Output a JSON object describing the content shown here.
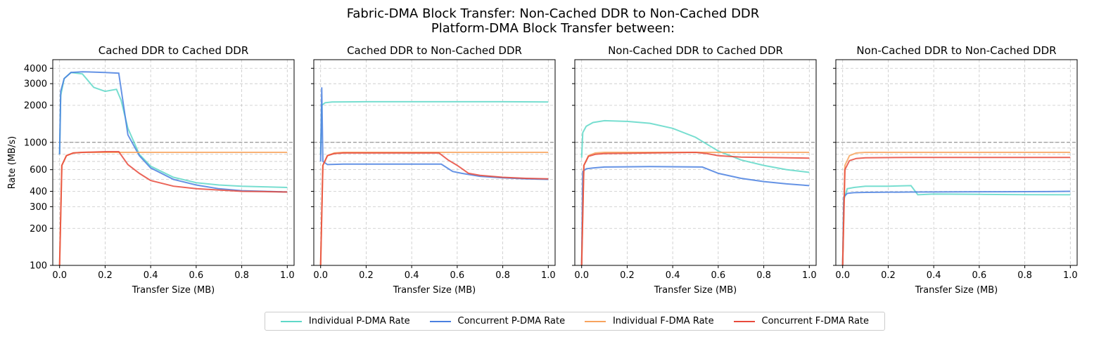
{
  "suptitle_line1": "Fabric-DMA Block Transfer: Non-Cached DDR to Non-Cached DDR",
  "suptitle_line2": "Platform-DMA Block Transfer between:",
  "colors": {
    "individual_pdma": "#5fd8c8",
    "concurrent_pdma": "#4a80e0",
    "individual_fdma": "#f7a45e",
    "concurrent_fdma": "#e84a3c",
    "grid": "#b0b0b0",
    "reference_line": "#808080"
  },
  "legend": [
    {
      "label": "Individual P-DMA Rate",
      "color": "#5fd8c8"
    },
    {
      "label": "Concurrent P-DMA Rate",
      "color": "#4a80e0"
    },
    {
      "label": "Individual F-DMA Rate",
      "color": "#f7a45e"
    },
    {
      "label": "Concurrent F-DMA Rate",
      "color": "#e84a3c"
    }
  ],
  "chart_data": [
    {
      "type": "line",
      "title": "Cached DDR to Cached DDR",
      "xlabel": "Transfer Size (MB)",
      "ylabel": "Rate (MB/s)",
      "yscale": "log",
      "xlim": [
        -0.03,
        1.03
      ],
      "ylim": [
        100,
        4700
      ],
      "xticks": [
        "0.0",
        "0.2",
        "0.4",
        "0.6",
        "0.8",
        "1.0"
      ],
      "yticks": [
        "100",
        "200",
        "300",
        "400",
        "600",
        "1000",
        "2000",
        "3000",
        "4000"
      ],
      "grid": true,
      "reference_line_y": 1000,
      "series": [
        {
          "name": "Individual P-DMA Rate",
          "x": [
            0.0,
            0.005,
            0.02,
            0.05,
            0.1,
            0.15,
            0.2,
            0.25,
            0.27,
            0.3,
            0.35,
            0.4,
            0.5,
            0.6,
            0.7,
            0.8,
            0.9,
            1.0
          ],
          "y": [
            800,
            2400,
            3300,
            3700,
            3600,
            2800,
            2600,
            2700,
            2200,
            1300,
            800,
            640,
            520,
            470,
            450,
            440,
            435,
            430
          ]
        },
        {
          "name": "Concurrent P-DMA Rate",
          "x": [
            0.0,
            0.005,
            0.02,
            0.05,
            0.1,
            0.2,
            0.26,
            0.3,
            0.35,
            0.4,
            0.5,
            0.6,
            0.7,
            0.8,
            0.9,
            1.0
          ],
          "y": [
            800,
            2600,
            3300,
            3700,
            3750,
            3700,
            3650,
            1150,
            780,
            620,
            500,
            450,
            420,
            405,
            400,
            395
          ]
        },
        {
          "name": "Individual F-DMA Rate",
          "x": [
            0.0,
            0.01,
            0.03,
            0.06,
            0.1,
            0.3,
            0.5,
            0.7,
            1.0
          ],
          "y": [
            100,
            650,
            780,
            820,
            830,
            830,
            830,
            830,
            830
          ]
        },
        {
          "name": "Concurrent F-DMA Rate",
          "x": [
            0.0,
            0.01,
            0.03,
            0.06,
            0.1,
            0.2,
            0.26,
            0.3,
            0.35,
            0.4,
            0.5,
            0.6,
            0.7,
            0.8,
            0.9,
            1.0
          ],
          "y": [
            100,
            650,
            780,
            820,
            830,
            840,
            840,
            660,
            560,
            490,
            440,
            420,
            410,
            400,
            398,
            395
          ]
        }
      ]
    },
    {
      "type": "line",
      "title": "Cached DDR to Non-Cached DDR",
      "xlabel": "Transfer Size (MB)",
      "ylabel": "",
      "yscale": "log",
      "xlim": [
        -0.03,
        1.03
      ],
      "ylim": [
        100,
        4700
      ],
      "xticks": [
        "0.0",
        "0.2",
        "0.4",
        "0.6",
        "0.8",
        "1.0"
      ],
      "grid": true,
      "reference_line_y": 1000,
      "series": [
        {
          "name": "Individual P-DMA Rate",
          "x": [
            0.0,
            0.005,
            0.02,
            0.05,
            0.2,
            0.5,
            0.8,
            1.0
          ],
          "y": [
            800,
            2000,
            2100,
            2130,
            2140,
            2140,
            2140,
            2130
          ]
        },
        {
          "name": "Concurrent P-DMA Rate",
          "x": [
            0.0,
            0.005,
            0.01,
            0.03,
            0.1,
            0.3,
            0.53,
            0.58,
            0.62,
            0.7,
            0.8,
            0.9,
            1.0
          ],
          "y": [
            700,
            2800,
            700,
            660,
            665,
            665,
            665,
            580,
            560,
            530,
            515,
            505,
            500
          ]
        },
        {
          "name": "Individual F-DMA Rate",
          "x": [
            0.0,
            0.01,
            0.03,
            0.06,
            0.1,
            0.3,
            0.5,
            0.7,
            1.0
          ],
          "y": [
            100,
            650,
            780,
            820,
            830,
            830,
            830,
            830,
            830
          ]
        },
        {
          "name": "Concurrent F-DMA Rate",
          "x": [
            0.0,
            0.01,
            0.03,
            0.06,
            0.1,
            0.3,
            0.52,
            0.56,
            0.6,
            0.65,
            0.7,
            0.8,
            0.9,
            1.0
          ],
          "y": [
            100,
            650,
            780,
            810,
            820,
            820,
            820,
            720,
            650,
            560,
            540,
            520,
            510,
            505
          ]
        }
      ]
    },
    {
      "type": "line",
      "title": "Non-Cached DDR to Cached DDR",
      "xlabel": "Transfer Size (MB)",
      "ylabel": "",
      "yscale": "log",
      "xlim": [
        -0.03,
        1.03
      ],
      "ylim": [
        100,
        4700
      ],
      "xticks": [
        "0.0",
        "0.2",
        "0.4",
        "0.6",
        "0.8",
        "1.0"
      ],
      "grid": true,
      "reference_line_y": 1000,
      "series": [
        {
          "name": "Individual P-DMA Rate",
          "x": [
            0.0,
            0.005,
            0.02,
            0.05,
            0.1,
            0.2,
            0.3,
            0.4,
            0.5,
            0.6,
            0.7,
            0.8,
            0.9,
            1.0
          ],
          "y": [
            750,
            1200,
            1350,
            1450,
            1500,
            1480,
            1430,
            1300,
            1100,
            850,
            720,
            650,
            600,
            570
          ]
        },
        {
          "name": "Concurrent P-DMA Rate",
          "x": [
            0.0,
            0.005,
            0.02,
            0.05,
            0.1,
            0.3,
            0.53,
            0.6,
            0.7,
            0.8,
            0.9,
            1.0
          ],
          "y": [
            100,
            580,
            610,
            620,
            630,
            635,
            630,
            560,
            510,
            480,
            460,
            445
          ]
        },
        {
          "name": "Individual F-DMA Rate",
          "x": [
            0.0,
            0.01,
            0.03,
            0.06,
            0.1,
            0.3,
            0.5,
            0.7,
            1.0
          ],
          "y": [
            100,
            650,
            780,
            820,
            830,
            830,
            830,
            830,
            830
          ]
        },
        {
          "name": "Concurrent F-DMA Rate",
          "x": [
            0.0,
            0.01,
            0.03,
            0.06,
            0.1,
            0.3,
            0.5,
            0.55,
            0.6,
            0.7,
            0.8,
            0.9,
            1.0
          ],
          "y": [
            100,
            650,
            770,
            800,
            810,
            820,
            830,
            810,
            780,
            760,
            755,
            750,
            745
          ]
        }
      ]
    },
    {
      "type": "line",
      "title": "Non-Cached DDR to Non-Cached DDR",
      "xlabel": "Transfer Size (MB)",
      "ylabel": "",
      "yscale": "log",
      "xlim": [
        -0.03,
        1.03
      ],
      "ylim": [
        100,
        4700
      ],
      "xticks": [
        "0.0",
        "0.2",
        "0.4",
        "0.6",
        "0.8",
        "1.0"
      ],
      "grid": true,
      "reference_line_y": 1000,
      "series": [
        {
          "name": "Individual P-DMA Rate",
          "x": [
            0.0,
            0.005,
            0.02,
            0.05,
            0.1,
            0.2,
            0.3,
            0.33,
            0.4,
            0.6,
            0.8,
            1.0
          ],
          "y": [
            100,
            340,
            420,
            430,
            440,
            440,
            445,
            375,
            380,
            378,
            376,
            375
          ]
        },
        {
          "name": "Concurrent P-DMA Rate",
          "x": [
            0.0,
            0.005,
            0.02,
            0.05,
            0.1,
            0.3,
            0.5,
            0.7,
            0.9,
            1.0
          ],
          "y": [
            100,
            360,
            385,
            390,
            392,
            395,
            396,
            397,
            398,
            400
          ]
        },
        {
          "name": "Individual F-DMA Rate",
          "x": [
            0.0,
            0.01,
            0.03,
            0.06,
            0.1,
            0.3,
            0.5,
            0.7,
            1.0
          ],
          "y": [
            100,
            650,
            780,
            820,
            830,
            830,
            830,
            830,
            830
          ]
        },
        {
          "name": "Concurrent F-DMA Rate",
          "x": [
            0.0,
            0.01,
            0.03,
            0.06,
            0.1,
            0.3,
            0.5,
            0.7,
            1.0
          ],
          "y": [
            100,
            600,
            710,
            740,
            750,
            755,
            755,
            755,
            755
          ]
        }
      ]
    }
  ]
}
